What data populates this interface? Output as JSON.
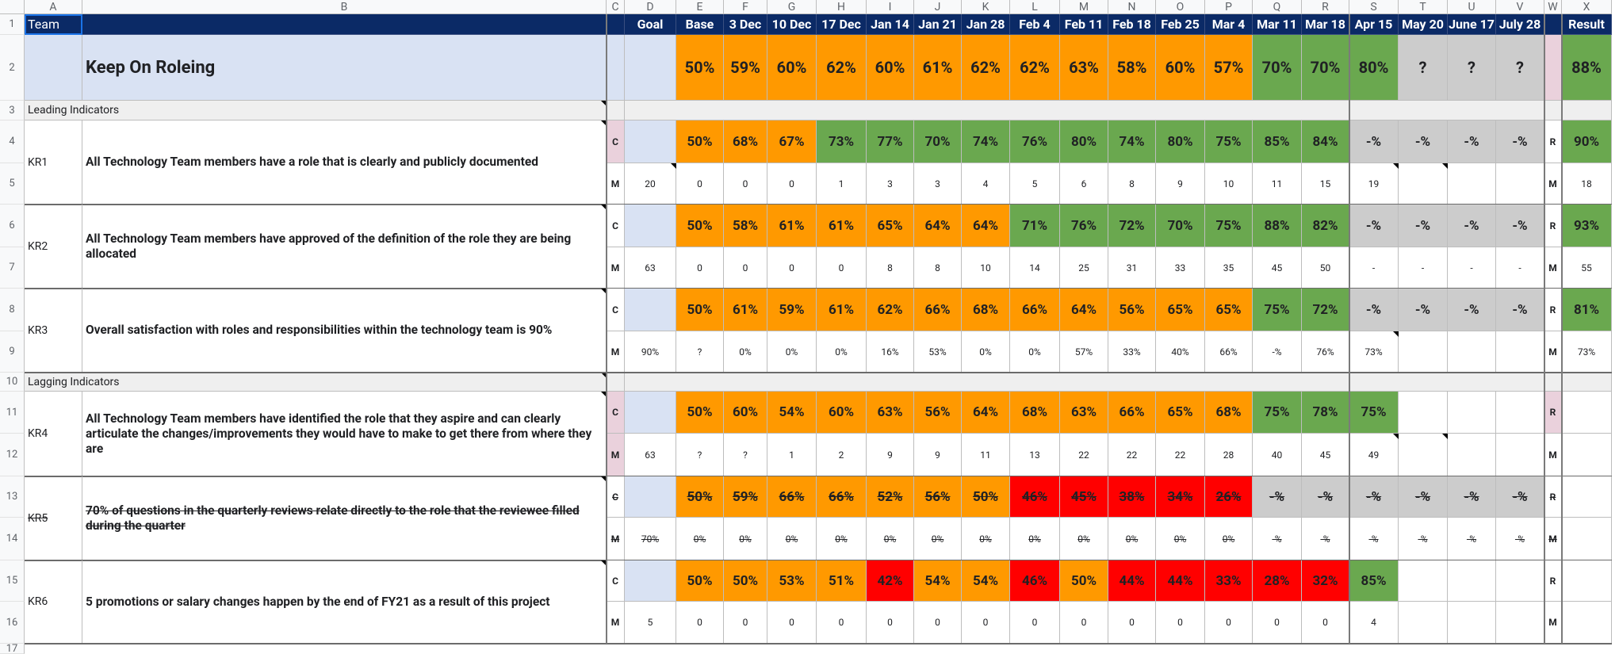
{
  "columns": {
    "letters": [
      "A",
      "B",
      "C",
      "D",
      "E",
      "F",
      "G",
      "H",
      "I",
      "J",
      "K",
      "L",
      "M",
      "N",
      "O",
      "P",
      "Q",
      "R",
      "S",
      "T",
      "U",
      "V",
      "W",
      "X"
    ],
    "header_labels": [
      "Team",
      "",
      "",
      "Goal",
      "Base",
      "3 Dec",
      "10 Dec",
      "17 Dec",
      "Jan 14",
      "Jan 21",
      "Jan 28",
      "Feb 4",
      "Feb 11",
      "Feb 18",
      "Feb 25",
      "Mar 4",
      "Mar 11",
      "Mar 18",
      "Apr 15",
      "May 20",
      "June 17",
      "July 28",
      "",
      "Result"
    ]
  },
  "row_numbers": [
    "1",
    "2",
    "3",
    "4",
    "5",
    "6",
    "7",
    "8",
    "9",
    "10",
    "11",
    "12",
    "13",
    "14",
    "15",
    "16",
    "17"
  ],
  "colors": {
    "header_bg": "#0b2a66",
    "light_blue": "#d9e2f3",
    "orange": "#ff9900",
    "green": "#6aa84f",
    "red": "#ff0000",
    "grey": "#cccccc",
    "pink": "#ead1dc",
    "section_bg": "#efefef"
  },
  "title": {
    "name": "Keep On Roleing",
    "values": [
      "50%",
      "59%",
      "60%",
      "62%",
      "60%",
      "61%",
      "62%",
      "62%",
      "63%",
      "58%",
      "60%",
      "57%",
      "70%",
      "70%",
      "80%",
      "?",
      "?",
      "?"
    ],
    "result": "88%"
  },
  "sections": {
    "leading": "Leading Indicators",
    "lagging": "Lagging Indicators"
  },
  "krs": [
    {
      "id": "KR1",
      "description": "All Technology Team members have a role that is clearly and publicly documented",
      "c_label": "C",
      "m_label": "M",
      "r_label": "R",
      "goal": "20",
      "c": [
        "50%",
        "68%",
        "67%",
        "73%",
        "77%",
        "70%",
        "74%",
        "76%",
        "80%",
        "74%",
        "80%",
        "75%",
        "85%",
        "84%",
        "-%",
        "-%",
        "-%",
        "-%"
      ],
      "m": [
        "0",
        "0",
        "0",
        "1",
        "3",
        "3",
        "4",
        "5",
        "6",
        "8",
        "9",
        "10",
        "11",
        "15",
        "19",
        "",
        "",
        ""
      ],
      "result_c": "90%",
      "result_m": "18"
    },
    {
      "id": "KR2",
      "description": "All Technology Team members have approved of the definition of the role they are being allocated",
      "c_label": "C",
      "m_label": "M",
      "r_label": "R",
      "goal": "63",
      "c": [
        "50%",
        "58%",
        "61%",
        "61%",
        "65%",
        "64%",
        "64%",
        "71%",
        "76%",
        "72%",
        "70%",
        "75%",
        "88%",
        "82%",
        "-%",
        "-%",
        "-%",
        "-%"
      ],
      "m": [
        "0",
        "0",
        "0",
        "0",
        "8",
        "8",
        "10",
        "14",
        "25",
        "31",
        "33",
        "35",
        "45",
        "50",
        "-",
        "-",
        "-",
        "-"
      ],
      "result_c": "93%",
      "result_m": "55"
    },
    {
      "id": "KR3",
      "description": "Overall satisfaction with roles and responsibilities within the technology team is 90%",
      "c_label": "C",
      "m_label": "M",
      "r_label": "R",
      "goal": "90%",
      "c": [
        "50%",
        "61%",
        "59%",
        "61%",
        "62%",
        "66%",
        "68%",
        "66%",
        "64%",
        "56%",
        "65%",
        "65%",
        "75%",
        "72%",
        "-%",
        "-%",
        "-%",
        "-%"
      ],
      "m": [
        "?",
        "0%",
        "0%",
        "0%",
        "16%",
        "53%",
        "0%",
        "0%",
        "57%",
        "33%",
        "40%",
        "66%",
        "-%",
        "76%",
        "73%",
        "",
        "",
        ""
      ],
      "result_c": "81%",
      "result_m": "73%"
    },
    {
      "id": "KR4",
      "description": "All Technology Team members have identified the role that they aspire and can clearly articulate the changes/improvements they would have to make to get there from where they are",
      "c_label": "C",
      "m_label": "M",
      "r_label": "R",
      "goal": "63",
      "c": [
        "50%",
        "60%",
        "54%",
        "60%",
        "63%",
        "56%",
        "64%",
        "68%",
        "63%",
        "66%",
        "65%",
        "68%",
        "75%",
        "78%",
        "75%",
        "",
        "",
        ""
      ],
      "m": [
        "?",
        "?",
        "1",
        "2",
        "9",
        "9",
        "11",
        "13",
        "22",
        "22",
        "22",
        "28",
        "40",
        "45",
        "49",
        "",
        "",
        ""
      ],
      "result_c": "",
      "result_m": ""
    },
    {
      "id": "KR5",
      "description": "70% of questions in the quarterly reviews relate directly to the role that the reviewee filled during the quarter",
      "c_label": "C",
      "m_label": "M",
      "r_label": "R",
      "goal": "70%",
      "c": [
        "50%",
        "59%",
        "66%",
        "66%",
        "52%",
        "56%",
        "50%",
        "46%",
        "45%",
        "38%",
        "34%",
        "26%",
        "-%",
        "-%",
        "-%",
        "-%",
        "-%",
        "-%"
      ],
      "m": [
        "0%",
        "0%",
        "0%",
        "0%",
        "0%",
        "0%",
        "0%",
        "0%",
        "0%",
        "0%",
        "0%",
        "0%",
        "-%",
        "-%",
        "-%",
        "-%",
        "-%",
        "-%"
      ],
      "result_c": "",
      "result_m": ""
    },
    {
      "id": "KR6",
      "description": "5 promotions or salary changes happen by the end of FY21 as a result of this project",
      "c_label": "C",
      "m_label": "M",
      "r_label": "R",
      "goal": "5",
      "c": [
        "50%",
        "50%",
        "53%",
        "51%",
        "42%",
        "54%",
        "54%",
        "46%",
        "50%",
        "44%",
        "44%",
        "33%",
        "28%",
        "32%",
        "85%",
        "",
        "",
        ""
      ],
      "m": [
        "0",
        "0",
        "0",
        "0",
        "0",
        "0",
        "0",
        "0",
        "0",
        "0",
        "0",
        "0",
        "0",
        "0",
        "4",
        "",
        "",
        ""
      ],
      "result_c": "",
      "result_m": ""
    }
  ]
}
